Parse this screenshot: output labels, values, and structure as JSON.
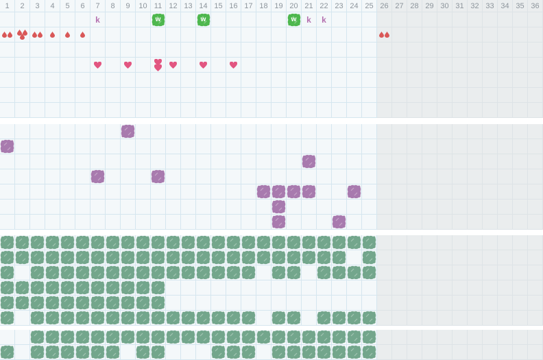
{
  "grid": {
    "columns": 36,
    "active_columns": 25,
    "day_numbers": [
      "1",
      "2",
      "3",
      "4",
      "5",
      "6",
      "7",
      "8",
      "9",
      "10",
      "11",
      "12",
      "13",
      "14",
      "15",
      "16",
      "17",
      "18",
      "19",
      "20",
      "21",
      "22",
      "23",
      "24",
      "25",
      "26",
      "27",
      "28",
      "29",
      "30",
      "31",
      "32",
      "33",
      "34",
      "35",
      "36"
    ]
  },
  "icons": {
    "k_label": "k",
    "w_label": "w"
  },
  "colors": {
    "cell_bg": "#f4f8fa",
    "grid_line": "#d5e6ef",
    "inactive_bg": "#eaedee",
    "inactive_line": "#dde3e6",
    "header_text": "#8d959c",
    "drop_red": "#d95858",
    "heart_pink": "#e25681",
    "k_mauve": "#b470af",
    "w_green": "#4eb74e",
    "purple_blob": "#a87aae",
    "green_blob": "#73a68c"
  },
  "bands": [
    {
      "rows": [
        {
          "cells": [
            {
              "col": 7,
              "icon": "k-letter"
            },
            {
              "col": 11,
              "icon": "w-badge"
            },
            {
              "col": 14,
              "icon": "w-badge"
            },
            {
              "col": 20,
              "icon": "w-badge"
            },
            {
              "col": 21,
              "icon": "k-letter"
            },
            {
              "col": 22,
              "icon": "k-letter"
            }
          ]
        },
        {
          "cells": [
            {
              "col": 1,
              "icon": "drops-2"
            },
            {
              "col": 2,
              "icon": "drops-3"
            },
            {
              "col": 3,
              "icon": "drops-2"
            },
            {
              "col": 4,
              "icon": "drops-1"
            },
            {
              "col": 5,
              "icon": "drops-1"
            },
            {
              "col": 6,
              "icon": "drops-1"
            },
            {
              "col": 26,
              "icon": "drops-2"
            }
          ]
        },
        {
          "cells": []
        },
        {
          "cells": [
            {
              "col": 7,
              "icon": "heart"
            },
            {
              "col": 9,
              "icon": "heart"
            },
            {
              "col": 11,
              "icon": "heart-2"
            },
            {
              "col": 12,
              "icon": "heart"
            },
            {
              "col": 14,
              "icon": "heart"
            },
            {
              "col": 16,
              "icon": "heart"
            }
          ]
        },
        {
          "cells": []
        },
        {
          "cells": []
        },
        {
          "cells": []
        }
      ]
    },
    {
      "rows": [
        {
          "cells": [
            {
              "col": 9,
              "icon": "purple-blob"
            }
          ]
        },
        {
          "cells": [
            {
              "col": 1,
              "icon": "purple-blob"
            }
          ]
        },
        {
          "cells": [
            {
              "col": 21,
              "icon": "purple-blob"
            }
          ]
        },
        {
          "cells": [
            {
              "cols": [
                7,
                11
              ],
              "icon": "purple-blob"
            }
          ]
        },
        {
          "cells": [
            {
              "cols": [
                18,
                19,
                20,
                21,
                24
              ],
              "icon": "purple-blob"
            }
          ]
        },
        {
          "cells": [
            {
              "col": 19,
              "icon": "purple-blob"
            }
          ]
        },
        {
          "cells": [
            {
              "cols": [
                19,
                23
              ],
              "icon": "purple-blob"
            }
          ]
        }
      ]
    },
    {
      "rows": [
        {
          "cells": [
            {
              "cols": [
                1,
                2,
                3,
                4,
                5,
                6,
                7,
                8,
                9,
                10,
                11,
                12,
                13,
                14,
                15,
                16,
                17,
                18,
                19,
                20,
                21,
                22,
                23,
                24,
                25
              ],
              "icon": "green-blob"
            }
          ]
        },
        {
          "cells": [
            {
              "cols": [
                1,
                2,
                3,
                4,
                5,
                6,
                7,
                8,
                9,
                10,
                11,
                12,
                13,
                14,
                15,
                16,
                17,
                18,
                19,
                20,
                21,
                22,
                23,
                25
              ],
              "icon": "green-blob"
            }
          ]
        },
        {
          "cells": [
            {
              "cols": [
                1,
                3,
                4,
                5,
                6,
                7,
                8,
                9,
                10,
                11,
                12,
                13,
                14,
                15,
                16,
                17,
                19,
                20,
                22,
                23,
                24,
                25
              ],
              "icon": "green-blob"
            }
          ]
        },
        {
          "cells": [
            {
              "cols": [
                1,
                2,
                3,
                4,
                5,
                6,
                7,
                8,
                9,
                10,
                11
              ],
              "icon": "green-blob"
            }
          ]
        },
        {
          "cells": [
            {
              "cols": [
                1,
                2,
                3,
                4,
                5,
                6,
                7,
                8,
                9,
                10,
                11
              ],
              "icon": "green-blob"
            }
          ]
        },
        {
          "cells": [
            {
              "cols": [
                1,
                3,
                4,
                5,
                6,
                7,
                8,
                9,
                10,
                11,
                12,
                13,
                14,
                15,
                16,
                17,
                19,
                20,
                22,
                23,
                24,
                25
              ],
              "icon": "green-blob"
            }
          ]
        }
      ]
    },
    {
      "rows": [
        {
          "cells": [
            {
              "cols": [
                3,
                4,
                5,
                6,
                7,
                8,
                9,
                10,
                11,
                12,
                13,
                14,
                15,
                16,
                17,
                18,
                19,
                20,
                21,
                22,
                23,
                24,
                25
              ],
              "icon": "green-blob"
            }
          ]
        },
        {
          "cells": [
            {
              "cols": [
                1,
                3,
                4,
                5,
                6,
                7,
                8,
                10,
                11,
                15,
                16,
                17,
                19,
                20,
                21,
                22,
                23,
                24,
                25
              ],
              "icon": "green-blob"
            }
          ]
        }
      ]
    }
  ]
}
